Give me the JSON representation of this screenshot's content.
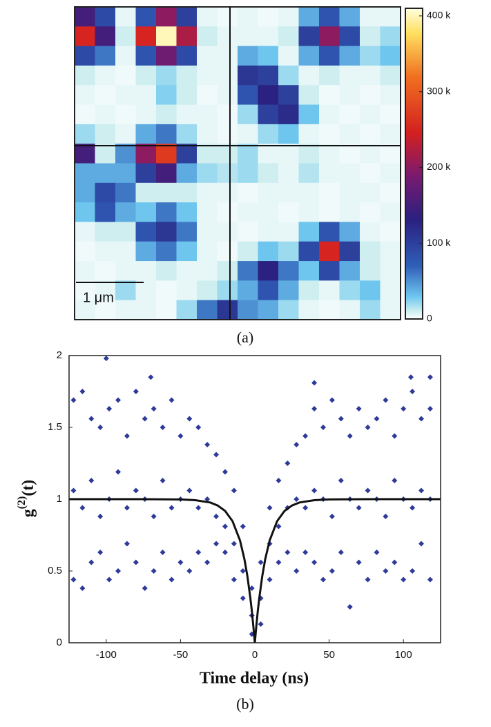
{
  "chart_data": [
    {
      "type": "heatmap",
      "caption": "(a)",
      "scale_label": "1 μm",
      "values": [
        [
          150,
          90,
          5,
          80,
          200,
          100,
          5,
          3,
          5,
          3,
          5,
          40,
          80,
          40,
          5,
          5
        ],
        [
          250,
          150,
          10,
          250,
          400,
          220,
          10,
          5,
          5,
          5,
          10,
          100,
          200,
          90,
          10,
          20
        ],
        [
          90,
          60,
          5,
          80,
          180,
          90,
          5,
          5,
          40,
          30,
          5,
          40,
          80,
          40,
          20,
          30
        ],
        [
          10,
          5,
          3,
          10,
          20,
          10,
          5,
          5,
          110,
          100,
          20,
          5,
          10,
          5,
          5,
          10
        ],
        [
          5,
          3,
          5,
          5,
          25,
          10,
          3,
          5,
          80,
          130,
          100,
          10,
          3,
          5,
          3,
          5
        ],
        [
          3,
          5,
          3,
          5,
          10,
          5,
          5,
          3,
          20,
          100,
          120,
          30,
          5,
          3,
          5,
          3
        ],
        [
          20,
          10,
          5,
          40,
          60,
          20,
          5,
          3,
          5,
          20,
          30,
          5,
          3,
          5,
          3,
          5
        ],
        [
          150,
          10,
          50,
          200,
          270,
          100,
          10,
          10,
          20,
          5,
          5,
          10,
          5,
          3,
          5,
          3
        ],
        [
          40,
          40,
          40,
          100,
          150,
          40,
          20,
          15,
          20,
          10,
          5,
          15,
          5,
          5,
          3,
          5
        ],
        [
          40,
          90,
          60,
          10,
          10,
          10,
          5,
          5,
          3,
          5,
          5,
          5,
          3,
          5,
          5,
          3
        ],
        [
          30,
          80,
          40,
          30,
          60,
          30,
          5,
          3,
          5,
          5,
          3,
          5,
          3,
          5,
          3,
          5
        ],
        [
          5,
          10,
          10,
          80,
          110,
          60,
          5,
          5,
          3,
          5,
          5,
          30,
          80,
          40,
          5,
          3
        ],
        [
          3,
          5,
          5,
          40,
          60,
          30,
          5,
          3,
          10,
          30,
          20,
          90,
          250,
          100,
          10,
          5
        ],
        [
          5,
          3,
          5,
          5,
          10,
          5,
          5,
          10,
          60,
          130,
          60,
          30,
          90,
          40,
          10,
          5
        ],
        [
          3,
          5,
          20,
          5,
          3,
          5,
          10,
          20,
          40,
          80,
          40,
          10,
          5,
          20,
          30,
          5
        ],
        [
          5,
          3,
          5,
          5,
          3,
          20,
          60,
          110,
          50,
          40,
          20,
          5,
          3,
          5,
          20,
          5
        ]
      ],
      "clim": [
        0,
        410
      ],
      "cticks": [
        0,
        {
          "value": 100,
          "label": "100 k"
        },
        {
          "value": 200,
          "label": "200 k"
        },
        {
          "value": 300,
          "label": "300 k"
        },
        {
          "value": 400,
          "label": "400 k"
        }
      ]
    },
    {
      "type": "scatter",
      "caption": "(b)",
      "x_label": "Time delay (ns)",
      "y_label": {
        "base": "g",
        "sup": "(2)",
        "rest": "(t)"
      },
      "xlim": [
        -125,
        125
      ],
      "xticks": [
        -100,
        -50,
        0,
        50,
        100
      ],
      "ylim": [
        0,
        2
      ],
      "yticks": [
        0,
        0.5,
        1,
        1.5,
        2
      ],
      "series": [
        {
          "style": "marker",
          "color": "#2e3a9a",
          "x": [
            -122,
            -122,
            -122,
            -116,
            -116,
            -116,
            -110,
            -110,
            -110,
            -104,
            -104,
            -104,
            -98,
            -98,
            -98,
            -92,
            -92,
            -92,
            -86,
            -86,
            -86,
            -80,
            -80,
            -80,
            -74,
            -74,
            -74,
            -68,
            -68,
            -68,
            -62,
            -62,
            -62,
            -56,
            -56,
            -56,
            -50,
            -50,
            -50,
            -44,
            -44,
            -44,
            -38,
            -38,
            -38,
            -32,
            -32,
            -32,
            -26,
            -26,
            -26,
            -20,
            -20,
            -20,
            -14,
            -14,
            -14,
            -8,
            -8,
            -8,
            -2,
            -2,
            -2,
            4,
            4,
            4,
            10,
            10,
            10,
            16,
            16,
            16,
            22,
            22,
            22,
            28,
            28,
            28,
            34,
            34,
            34,
            40,
            40,
            40,
            46,
            46,
            46,
            52,
            52,
            52,
            58,
            58,
            58,
            64,
            64,
            64,
            70,
            70,
            70,
            76,
            76,
            76,
            82,
            82,
            82,
            88,
            88,
            88,
            94,
            94,
            94,
            100,
            100,
            100,
            106,
            106,
            106,
            112,
            112,
            112,
            118,
            118,
            118,
            -100,
            -70,
            105,
            118,
            40
          ],
          "y": [
            1.69,
            1.06,
            0.44,
            1.75,
            0.94,
            0.38,
            1.56,
            1.13,
            0.56,
            1.5,
            0.88,
            0.63,
            1.63,
            1.0,
            0.44,
            1.69,
            1.19,
            0.5,
            1.44,
            0.94,
            0.69,
            1.75,
            1.06,
            0.56,
            1.56,
            1.0,
            0.38,
            1.63,
            0.88,
            0.5,
            1.5,
            1.13,
            0.63,
            1.69,
            0.94,
            0.44,
            1.44,
            1.0,
            0.56,
            1.56,
            1.06,
            0.5,
            1.5,
            0.94,
            0.63,
            1.38,
            1.0,
            0.56,
            1.31,
            0.88,
            0.69,
            1.19,
            0.81,
            0.63,
            1.06,
            0.69,
            0.44,
            0.81,
            0.5,
            0.31,
            0.38,
            0.19,
            0.06,
            0.56,
            0.31,
            0.13,
            0.94,
            0.69,
            0.44,
            1.13,
            0.81,
            0.56,
            1.25,
            0.94,
            0.63,
            1.38,
            1.0,
            0.5,
            1.44,
            0.94,
            0.63,
            1.63,
            1.06,
            0.56,
            1.5,
            1.0,
            0.44,
            1.69,
            0.88,
            0.5,
            1.56,
            1.13,
            0.63,
            1.44,
            1.0,
            0.25,
            1.63,
            0.94,
            0.56,
            1.5,
            1.06,
            0.44,
            1.56,
            1.0,
            0.63,
            1.69,
            0.88,
            0.5,
            1.44,
            1.13,
            0.56,
            1.63,
            1.0,
            0.44,
            1.75,
            0.94,
            0.5,
            1.56,
            1.06,
            0.69,
            1.63,
            1.0,
            0.44,
            1.98,
            1.85,
            1.85,
            1.85,
            1.81
          ]
        },
        {
          "style": "line",
          "color": "#111111",
          "x": [
            -125,
            -100,
            -75,
            -50,
            -40,
            -30,
            -25,
            -20,
            -15,
            -10,
            -7,
            -5,
            -3,
            -2,
            -1,
            0,
            1,
            2,
            3,
            5,
            7,
            10,
            15,
            20,
            25,
            30,
            40,
            50,
            75,
            100,
            125
          ],
          "y": [
            1.0,
            1.0,
            1.0,
            0.998,
            0.993,
            0.977,
            0.956,
            0.918,
            0.847,
            0.713,
            0.583,
            0.465,
            0.313,
            0.221,
            0.118,
            0,
            0.118,
            0.221,
            0.313,
            0.465,
            0.583,
            0.713,
            0.847,
            0.918,
            0.956,
            0.977,
            0.993,
            0.998,
            1.0,
            1.0,
            1.0
          ]
        }
      ]
    }
  ]
}
